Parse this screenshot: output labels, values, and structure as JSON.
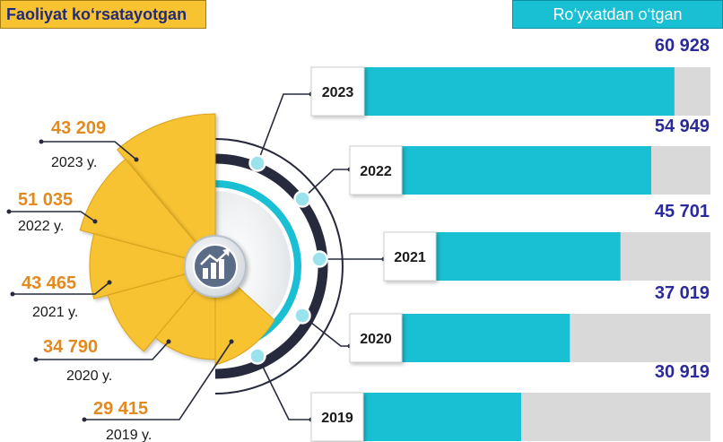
{
  "headers": {
    "left": "Faoliyat ko‘rsatayotgan",
    "right": "Ro‘yxatdan o‘tgan"
  },
  "colors": {
    "yellow": "#f7c331",
    "cyan": "#19bfd3",
    "track": "#d9d9d9",
    "navy": "#2a2a9c",
    "orange": "#e38a1f",
    "ring": "#262a3c"
  },
  "icon": "chart-growth-icon",
  "chart_data": [
    {
      "type": "bar",
      "orientation": "horizontal",
      "title": "Ro‘yxatdan o‘tgan",
      "categories": [
        "2023",
        "2022",
        "2021",
        "2020",
        "2019"
      ],
      "values": [
        60928,
        54949,
        45701,
        37019,
        30919
      ],
      "value_labels": [
        "60 928",
        "54 949",
        "45 701",
        "37 019",
        "30 919"
      ],
      "xlim": [
        0,
        68000
      ]
    },
    {
      "type": "pie",
      "title": "Faoliyat ko‘rsatayotgan",
      "categories": [
        "2023 y.",
        "2022 y.",
        "2021 y.",
        "2020 y.",
        "2019 y."
      ],
      "values": [
        43209,
        51035,
        43465,
        34790,
        29415
      ],
      "value_labels": [
        "43 209",
        "51 035",
        "43 465",
        "34 790",
        "29 415"
      ]
    }
  ]
}
